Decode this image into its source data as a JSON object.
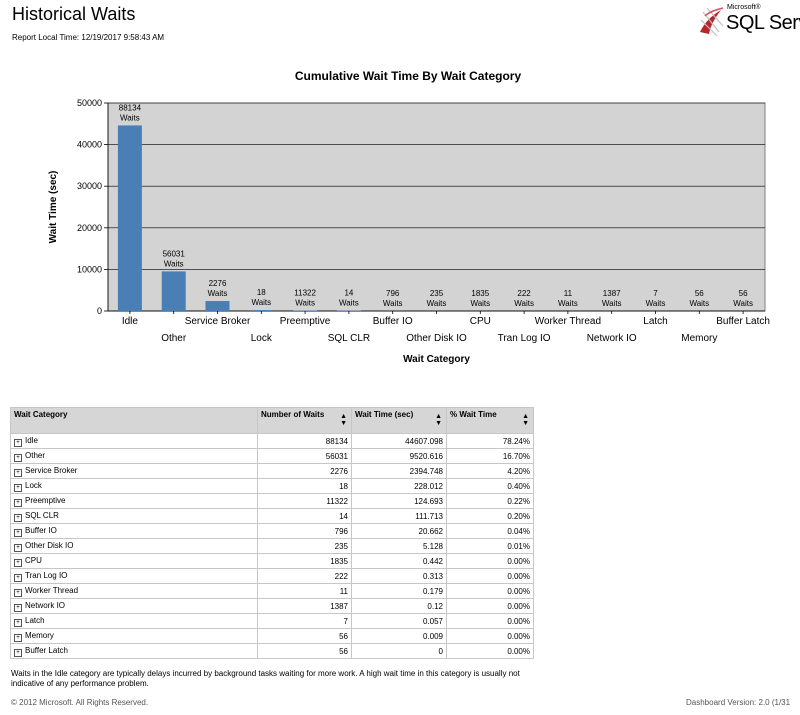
{
  "header": {
    "title": "Historical Waits",
    "report_time": "Report Local Time: 12/19/2017 9:58:43 AM",
    "logo_microsoft": "Microsoft®",
    "logo_product": "SQL Serv"
  },
  "chart_data": {
    "type": "bar",
    "title": "Cumulative Wait Time By Wait Category",
    "xlabel": "Wait Category",
    "ylabel": "Wait Time (sec)",
    "ylim": [
      0,
      50000
    ],
    "yticks": [
      0,
      10000,
      20000,
      30000,
      40000,
      50000
    ],
    "grid": true,
    "categories": [
      "Idle",
      "Other",
      "Service Broker",
      "Lock",
      "Preemptive",
      "SQL CLR",
      "Buffer IO",
      "Other Disk IO",
      "CPU",
      "Tran Log IO",
      "Worker Thread",
      "Network IO",
      "Latch",
      "Memory",
      "Buffer Latch"
    ],
    "values": [
      44607.098,
      9520.616,
      2394.748,
      228.012,
      124.693,
      111.713,
      20.662,
      5.128,
      0.442,
      0.313,
      0.179,
      0.12,
      0.057,
      0.009,
      0
    ],
    "bar_labels": [
      [
        "88134",
        "Waits"
      ],
      [
        "56031",
        "Waits"
      ],
      [
        "2276",
        "Waits"
      ],
      [
        "18",
        "Waits"
      ],
      [
        "11322",
        "Waits"
      ],
      [
        "14",
        "Waits"
      ],
      [
        "796",
        "Waits"
      ],
      [
        "235",
        "Waits"
      ],
      [
        "1835",
        "Waits"
      ],
      [
        "222",
        "Waits"
      ],
      [
        "11",
        "Waits"
      ],
      [
        "1387",
        "Waits"
      ],
      [
        "7",
        "Waits"
      ],
      [
        "56",
        "Waits"
      ],
      [
        "56",
        "Waits"
      ]
    ],
    "colors": {
      "bar": "#4a7fb5",
      "plot_bg": "#d3d3d3",
      "grid": "#000000"
    }
  },
  "table": {
    "headers": [
      "Wait Category",
      "Number of Waits",
      "Wait Time (sec)",
      "% Wait Time"
    ],
    "sort_icon": "sort-updown-icon",
    "rows": [
      [
        "Idle",
        "88134",
        "44607.098",
        "78.24%"
      ],
      [
        "Other",
        "56031",
        "9520.616",
        "16.70%"
      ],
      [
        "Service Broker",
        "2276",
        "2394.748",
        "4.20%"
      ],
      [
        "Lock",
        "18",
        "228.012",
        "0.40%"
      ],
      [
        "Preemptive",
        "11322",
        "124.693",
        "0.22%"
      ],
      [
        "SQL CLR",
        "14",
        "111.713",
        "0.20%"
      ],
      [
        "Buffer IO",
        "796",
        "20.662",
        "0.04%"
      ],
      [
        "Other Disk IO",
        "235",
        "5.128",
        "0.01%"
      ],
      [
        "CPU",
        "1835",
        "0.442",
        "0.00%"
      ],
      [
        "Tran Log IO",
        "222",
        "0.313",
        "0.00%"
      ],
      [
        "Worker Thread",
        "11",
        "0.179",
        "0.00%"
      ],
      [
        "Network IO",
        "1387",
        "0.12",
        "0.00%"
      ],
      [
        "Latch",
        "7",
        "0.057",
        "0.00%"
      ],
      [
        "Memory",
        "56",
        "0.009",
        "0.00%"
      ],
      [
        "Buffer Latch",
        "56",
        "0",
        "0.00%"
      ]
    ]
  },
  "footer": {
    "note": "Waits in the Idle category are typically delays incurred by background tasks waiting for more work.  A high wait time in this category is usually not indicative of any performance problem.",
    "copyright": "© 2012 Microsoft.  All Rights Reserved.",
    "version": "Dashboard Version: 2.0 (1/31"
  }
}
